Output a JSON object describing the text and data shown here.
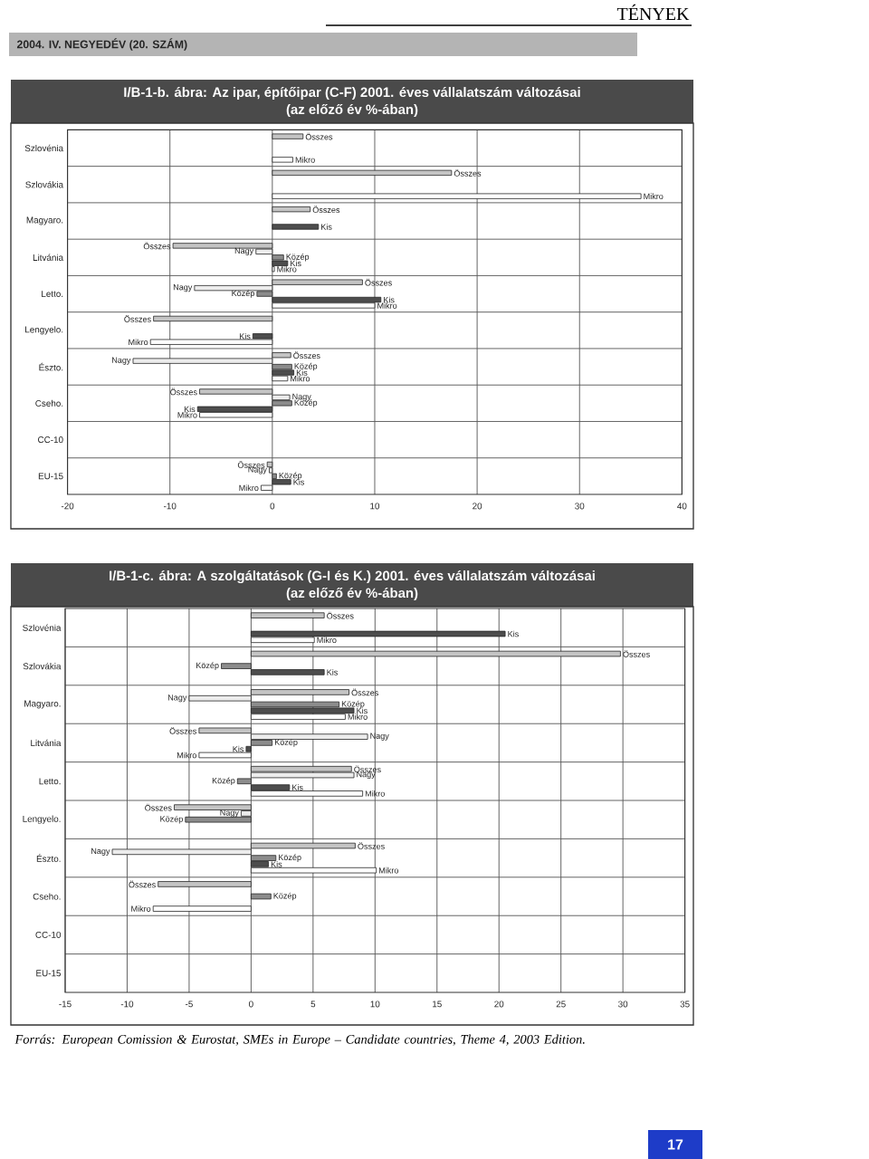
{
  "chart_data": [
    {
      "type": "bar",
      "orientation": "horizontal",
      "title": "I/B-1-b. ábra: Az ipar, építőipar (C-F) 2001. éves vállalatszám változásai",
      "subtitle": "(az előző év %-ában)",
      "annotations": [
        "TÉNYEK",
        "2004. IV. NEGYEDÉV (20. SZÁM)"
      ],
      "categories": [
        "Szlovénia",
        "Szlovákia",
        "Magyaro.",
        "Litvánia",
        "Letto.",
        "Lengyelo.",
        "Észto.",
        "Cseho.",
        "CC-10",
        "EU-15"
      ],
      "series": [
        {
          "name": "Összes",
          "color": "#c4c4c4",
          "values": [
            3.0,
            17.5,
            3.7,
            -9.7,
            8.8,
            -11.6,
            1.8,
            -7.1,
            null,
            -0.5
          ]
        },
        {
          "name": "Nagy",
          "color": "#ececec",
          "values": [
            null,
            null,
            null,
            -1.6,
            -7.6,
            null,
            -13.6,
            1.7,
            null,
            -0.3
          ]
        },
        {
          "name": "Közép",
          "color": "#8c8c8c",
          "values": [
            null,
            null,
            null,
            1.1,
            -1.5,
            null,
            1.9,
            1.9,
            null,
            0.4
          ]
        },
        {
          "name": "Kis",
          "color": "#4d4d4d",
          "values": [
            null,
            null,
            4.5,
            1.5,
            10.6,
            -1.9,
            2.1,
            -7.3,
            null,
            1.8
          ]
        },
        {
          "name": "Mikro",
          "color": "#ffffff",
          "values": [
            2.0,
            36.0,
            null,
            0.2,
            10.0,
            -11.9,
            1.5,
            -7.1,
            null,
            -1.1
          ]
        }
      ],
      "xlim": [
        -20,
        40
      ],
      "xticks": [
        -20,
        -10,
        0,
        10,
        20,
        30,
        40
      ],
      "grid": true
    },
    {
      "type": "bar",
      "orientation": "horizontal",
      "title": "I/B-1-c. ábra: A szolgáltatások (G-I és K.) 2001. éves vállalatszám változásai",
      "subtitle": "(az előző év %-ában)",
      "annotations": [
        "Forrás: European Comission & Eurostat, SMEs in Europe – Candidate countries, Theme 4, 2003 Edition.",
        "17"
      ],
      "categories": [
        "Szlovénia",
        "Szlovákia",
        "Magyaro.",
        "Litvánia",
        "Letto.",
        "Lengyelo.",
        "Észto.",
        "Cseho.",
        "CC-10",
        "EU-15"
      ],
      "series": [
        {
          "name": "Összes",
          "color": "#c4c4c4",
          "values": [
            5.9,
            29.8,
            7.9,
            -4.2,
            8.1,
            -6.2,
            8.4,
            -7.5,
            null,
            null
          ]
        },
        {
          "name": "Nagy",
          "color": "#ececec",
          "values": [
            null,
            null,
            -5.0,
            9.4,
            8.3,
            -0.8,
            -11.2,
            null,
            null,
            null
          ]
        },
        {
          "name": "Közép",
          "color": "#8c8c8c",
          "values": [
            null,
            -2.4,
            7.1,
            1.7,
            -1.1,
            -5.3,
            2.0,
            1.6,
            null,
            null
          ]
        },
        {
          "name": "Kis",
          "color": "#4d4d4d",
          "values": [
            20.5,
            5.9,
            8.3,
            -0.4,
            3.1,
            null,
            1.4,
            null,
            null,
            null
          ]
        },
        {
          "name": "Mikro",
          "color": "#ffffff",
          "values": [
            5.1,
            null,
            7.6,
            -4.2,
            9.0,
            null,
            10.1,
            -7.9,
            null,
            null
          ]
        }
      ],
      "xlim": [
        -15,
        35
      ],
      "xticks": [
        -15,
        -10,
        -5,
        0,
        5,
        10,
        15,
        20,
        25,
        30,
        35
      ],
      "grid": true
    }
  ]
}
